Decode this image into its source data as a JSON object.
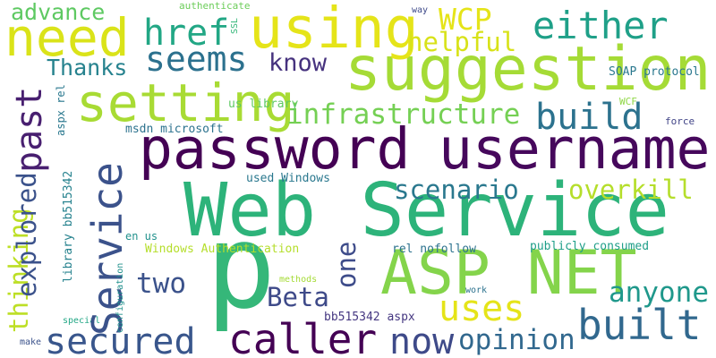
{
  "words": [
    {
      "text": "Web Service",
      "color": "#2db37a"
    },
    {
      "text": "p",
      "color": "#35b779"
    },
    {
      "text": "suggestions",
      "color": "#a5db36"
    },
    {
      "text": "password",
      "color": "#440154"
    },
    {
      "text": "username",
      "color": "#46085c"
    },
    {
      "text": "ASP NET",
      "color": "#84d44b"
    },
    {
      "text": "need",
      "color": "#dae319"
    },
    {
      "text": "using",
      "color": "#e5e419"
    },
    {
      "text": "setting",
      "color": "#a8db34"
    },
    {
      "text": "Service",
      "color": "#3b528b"
    },
    {
      "text": "built",
      "color": "#31688e"
    },
    {
      "text": "caller",
      "color": "#440154"
    },
    {
      "text": "secured",
      "color": "#39568c"
    },
    {
      "text": "now",
      "color": "#3e4a89"
    },
    {
      "text": "build",
      "color": "#2c728e"
    },
    {
      "text": "past",
      "color": "#481f70"
    },
    {
      "text": "either",
      "color": "#1fa088"
    },
    {
      "text": "href",
      "color": "#22a785"
    },
    {
      "text": "seems",
      "color": "#2c718e"
    },
    {
      "text": "infrastructure",
      "color": "#75d054"
    },
    {
      "text": "uses",
      "color": "#e5e419"
    },
    {
      "text": "opinion",
      "color": "#31688e"
    },
    {
      "text": "anyone",
      "color": "#1f988b"
    },
    {
      "text": "WCP",
      "color": "#e5e419"
    },
    {
      "text": "helpful",
      "color": "#d8e219"
    },
    {
      "text": "scenario",
      "color": "#2a788e"
    },
    {
      "text": "overkill",
      "color": "#b5de2b"
    },
    {
      "text": "thinking",
      "color": "#bddf26"
    },
    {
      "text": "explored",
      "color": "#3b528b"
    },
    {
      "text": "two",
      "color": "#3b528b"
    },
    {
      "text": "Beta",
      "color": "#3e4a89"
    },
    {
      "text": "one",
      "color": "#3e4c8a"
    },
    {
      "text": "know",
      "color": "#46327e"
    },
    {
      "text": "Thanks",
      "color": "#26828e"
    },
    {
      "text": "advance",
      "color": "#5ec962"
    },
    {
      "text": "SOAP protocol",
      "color": "#2a788e"
    },
    {
      "text": "publicly consumed",
      "color": "#1f9e89"
    },
    {
      "text": "Windows Authentication",
      "color": "#b5de2b"
    },
    {
      "text": "bb515342 aspx",
      "color": "#453781"
    },
    {
      "text": "rel nofollow",
      "color": "#2c728e"
    },
    {
      "text": "used Windows",
      "color": "#2a788e"
    },
    {
      "text": "msdn microsoft",
      "color": "#2c728e"
    },
    {
      "text": "us library",
      "color": "#5ec962"
    },
    {
      "text": "authenticate",
      "color": "#6ccd5a"
    },
    {
      "text": "way",
      "color": "#3e4a89"
    },
    {
      "text": "SSL",
      "color": "#35b779"
    },
    {
      "text": "WCF",
      "color": "#8fd744"
    },
    {
      "text": "force",
      "color": "#414487"
    },
    {
      "text": "aspx rel",
      "color": "#2a788e"
    },
    {
      "text": "library bb515342",
      "color": "#26828e"
    },
    {
      "text": "en us",
      "color": "#21918c"
    },
    {
      "text": "configuration",
      "color": "#21918c"
    },
    {
      "text": "methods",
      "color": "#a5db36"
    },
    {
      "text": "work",
      "color": "#2c728e"
    },
    {
      "text": "special",
      "color": "#22a785"
    },
    {
      "text": "make",
      "color": "#3b528b"
    }
  ]
}
